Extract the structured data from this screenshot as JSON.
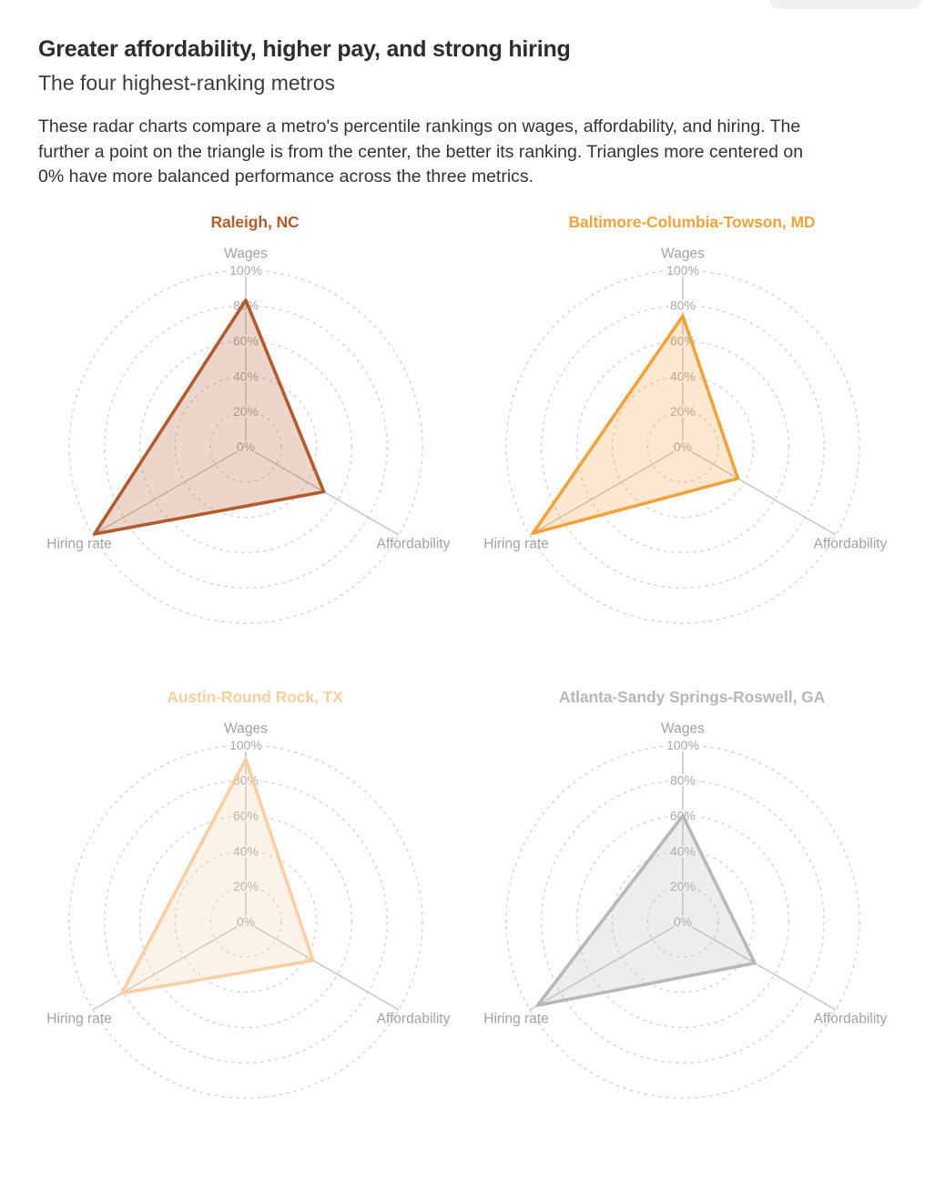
{
  "page": {
    "heading": "Greater affordability, higher pay, and strong hiring",
    "subheading": "The four highest-ranking metros",
    "description": "These radar charts compare a metro's percentile rankings on wages, affordability, and hiring. The further a point on the triangle is from the center, the better its ranking. Triangles more centered on 0% have more balanced performance across the three metrics."
  },
  "radar_axes": {
    "categories": [
      "Wages",
      "Affordability",
      "Hiring rate"
    ],
    "tick_labels": [
      "0%",
      "20%",
      "40%",
      "60%",
      "80%",
      "100%"
    ],
    "tick_values": [
      0,
      20,
      40,
      60,
      80,
      100
    ],
    "range": [
      0,
      100
    ],
    "unit": "%",
    "grid_style": "dashed-concentric-circles",
    "grid_color": "#d4d4d4",
    "spoke_color": "#c6c6c6",
    "label_color": "#a2a2a2"
  },
  "chart_data": [
    {
      "type": "radar",
      "title": "Raleigh, NC",
      "color": "#b25b2e",
      "categories": [
        "Wages",
        "Affordability",
        "Hiring rate"
      ],
      "values": [
        83,
        51,
        99
      ]
    },
    {
      "type": "radar",
      "title": "Baltimore-Columbia-Towson, MD",
      "color": "#efa33d",
      "categories": [
        "Wages",
        "Affordability",
        "Hiring rate"
      ],
      "values": [
        74,
        36,
        98
      ]
    },
    {
      "type": "radar",
      "title": "Austin-Round Rock, TX",
      "color": "#f8cfa4",
      "categories": [
        "Wages",
        "Affordability",
        "Hiring rate"
      ],
      "values": [
        92,
        44,
        81
      ]
    },
    {
      "type": "radar",
      "title": "Atlanta-Sandy Springs-Roswell, GA",
      "color": "#b8b8b8",
      "categories": [
        "Wages",
        "Affordability",
        "Hiring rate"
      ],
      "values": [
        60,
        47,
        95
      ]
    }
  ]
}
